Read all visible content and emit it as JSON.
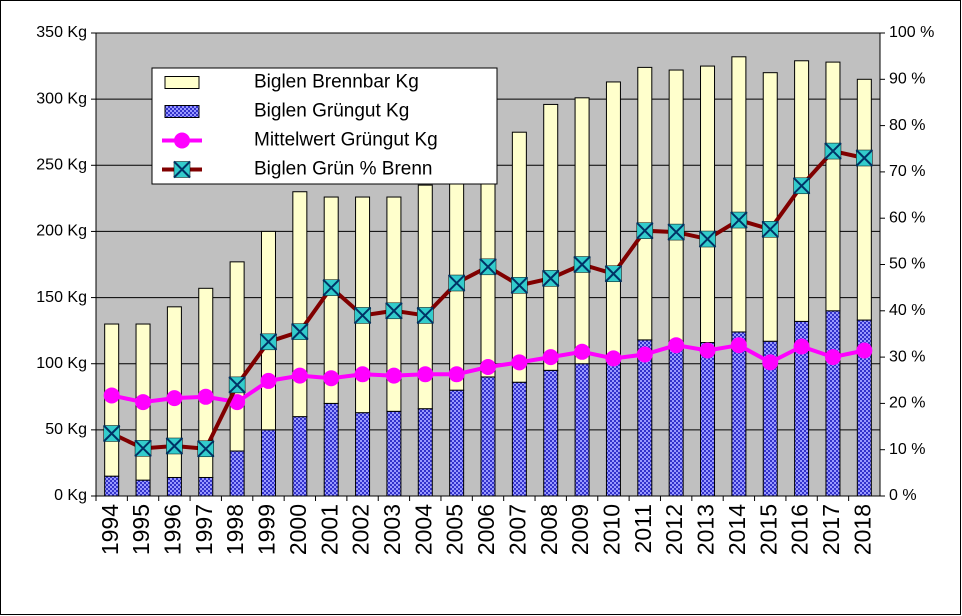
{
  "chart_data": {
    "type": "combo",
    "categories": [
      "1994",
      "1995",
      "1996",
      "1997",
      "1998",
      "1999",
      "2000",
      "2001",
      "2002",
      "2003",
      "2004",
      "2005",
      "2006",
      "2007",
      "2008",
      "2009",
      "2010",
      "2011",
      "2012",
      "2013",
      "2014",
      "2015",
      "2016",
      "2017",
      "2018"
    ],
    "series": [
      {
        "name": "Biglen Brennbar Kg",
        "type": "bar",
        "color": "#ffffcc",
        "values": [
          115,
          118,
          129,
          143,
          143,
          150,
          170,
          156,
          163,
          162,
          169,
          174,
          182,
          189,
          201,
          201,
          212,
          206,
          205,
          209,
          208,
          203,
          197,
          188,
          182
        ]
      },
      {
        "name": "Biglen Grüngut Kg",
        "type": "bar",
        "color": "#3333cc",
        "values": [
          15,
          12,
          14,
          14,
          34,
          50,
          60,
          70,
          63,
          64,
          66,
          80,
          90,
          86,
          95,
          100,
          101,
          118,
          117,
          116,
          124,
          117,
          132,
          140,
          133
        ]
      },
      {
        "name": "Mittelwert Grüngut Kg",
        "type": "line",
        "color": "#ff00ff",
        "values": [
          76,
          71,
          74,
          75,
          71,
          87,
          91,
          89,
          92,
          91,
          92,
          92,
          97.5,
          101,
          105,
          109,
          104,
          107,
          114,
          110,
          114,
          101,
          113,
          105,
          110
        ]
      },
      {
        "name": "Biglen Grün % Brenn",
        "type": "line",
        "color": "#800000",
        "marker_color": "#33cccc",
        "axis": "y2",
        "values": [
          13.5,
          10.3,
          10.8,
          10.2,
          24,
          33.3,
          35.5,
          45,
          39,
          40,
          39,
          46,
          49.5,
          45.5,
          47,
          50,
          48,
          57.3,
          57,
          55.5,
          59.6,
          57.6,
          67,
          74.5,
          73
        ]
      }
    ],
    "ylim": [
      0,
      350
    ],
    "yticks": [
      {
        "value": 0,
        "label": "0 Kg"
      },
      {
        "value": 50,
        "label": "50 Kg"
      },
      {
        "value": 100,
        "label": "100 Kg"
      },
      {
        "value": 150,
        "label": "150 Kg"
      },
      {
        "value": 200,
        "label": "200 Kg"
      },
      {
        "value": 250,
        "label": "250 Kg"
      },
      {
        "value": 300,
        "label": "300 Kg"
      },
      {
        "value": 350,
        "label": "350 Kg"
      }
    ],
    "y2lim": [
      0,
      100
    ],
    "y2ticks": [
      {
        "value": 0,
        "label": "0 %"
      },
      {
        "value": 10,
        "label": "10 %"
      },
      {
        "value": 20,
        "label": "20 %"
      },
      {
        "value": 30,
        "label": "30 %"
      },
      {
        "value": 40,
        "label": "40 %"
      },
      {
        "value": 50,
        "label": "50 %"
      },
      {
        "value": 60,
        "label": "60 %"
      },
      {
        "value": 70,
        "label": "70 %"
      },
      {
        "value": 80,
        "label": "80 %"
      },
      {
        "value": 90,
        "label": "90 %"
      },
      {
        "value": 100,
        "label": "100 %"
      }
    ],
    "grid": true,
    "stacked": true,
    "plot_background": "#c0c0c0",
    "legend": "upper left"
  }
}
